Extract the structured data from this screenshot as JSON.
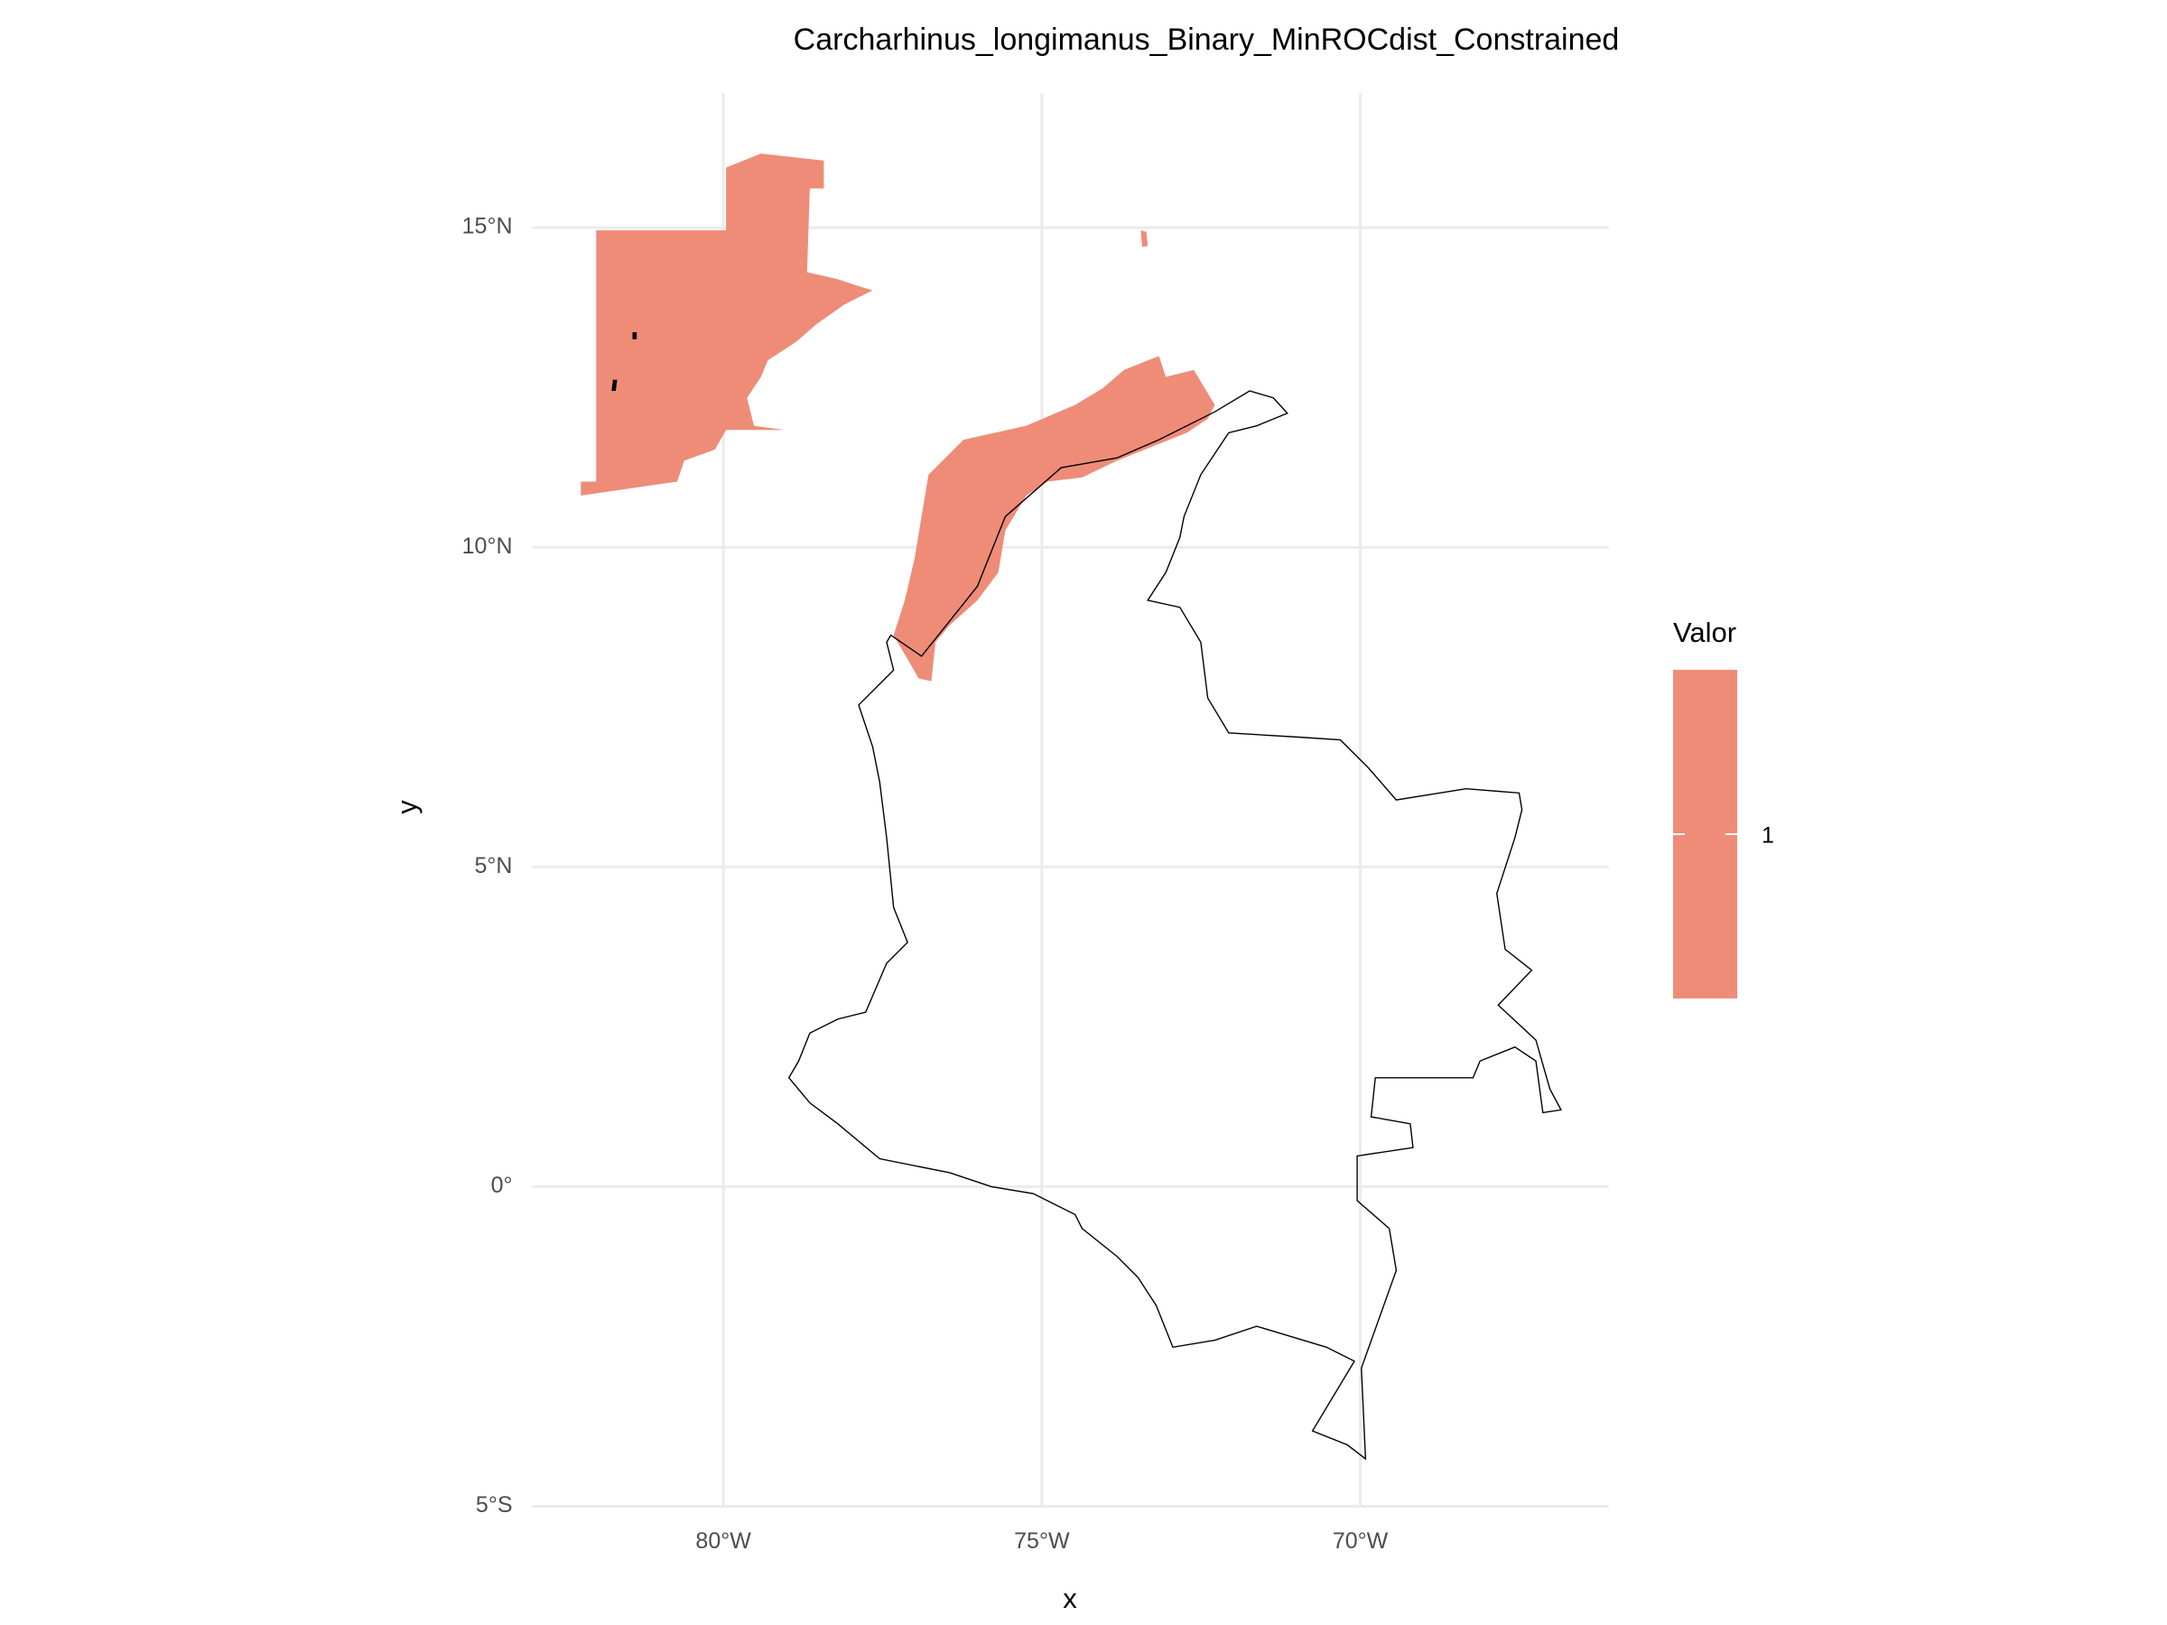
{
  "chart_data": {
    "type": "map",
    "title": "Carcharhinus_longimanus_Binary_MinROCdist_Constrained",
    "x_label": "x",
    "y_label": "y",
    "xlim": [
      -83,
      -66.1
    ],
    "ylim": [
      -5,
      17.1
    ],
    "xticks": [
      {
        "value": -80,
        "label": "80°W"
      },
      {
        "value": -75,
        "label": "75°W"
      },
      {
        "value": -70,
        "label": "70°W"
      }
    ],
    "yticks": [
      {
        "value": -5,
        "label": "5°S"
      },
      {
        "value": 0,
        "label": "0°"
      },
      {
        "value": 5,
        "label": "5°N"
      },
      {
        "value": 10,
        "label": "10°N"
      },
      {
        "value": 15,
        "label": "15°N"
      }
    ],
    "grid": true,
    "legend": {
      "title": "Valor",
      "values": [
        1
      ],
      "color": "#ee8c78"
    }
  }
}
